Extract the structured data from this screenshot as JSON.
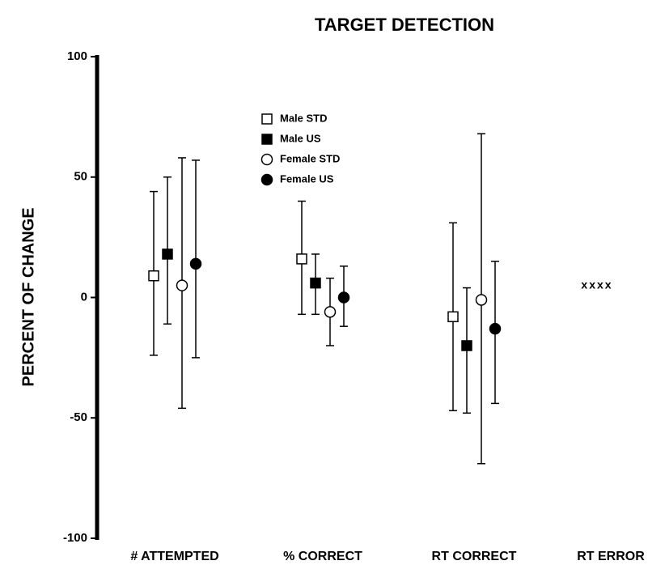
{
  "chart_data": {
    "type": "errorbar",
    "title": "TARGET DETECTION",
    "ylabel": "PERCENT OF CHANGE",
    "categories": [
      "# ATTEMPTED",
      "% CORRECT",
      "RT CORRECT",
      "RT ERROR"
    ],
    "series": [
      {
        "name": "Male STD",
        "color": "#000000",
        "marker": "square",
        "filled": false,
        "values": [
          9,
          16,
          -8,
          null
        ],
        "high": [
          44,
          40,
          31,
          null
        ],
        "low": [
          -24,
          -7,
          -47,
          null
        ]
      },
      {
        "name": "Male US",
        "color": "#000000",
        "marker": "square",
        "filled": true,
        "values": [
          18,
          6,
          -20,
          null
        ],
        "high": [
          50,
          18,
          4,
          null
        ],
        "low": [
          -11,
          -7,
          -48,
          null
        ]
      },
      {
        "name": "Female STD",
        "color": "#000000",
        "marker": "circle",
        "filled": false,
        "values": [
          5,
          -6,
          -1,
          null
        ],
        "high": [
          58,
          8,
          68,
          null
        ],
        "low": [
          -46,
          -20,
          -69,
          null
        ]
      },
      {
        "name": "Female US",
        "color": "#000000",
        "marker": "circle",
        "filled": true,
        "values": [
          14,
          0,
          -13,
          null
        ],
        "high": [
          57,
          13,
          15,
          null
        ],
        "low": [
          -25,
          -12,
          -44,
          null
        ]
      }
    ],
    "annotation": "xxxx",
    "ylim": [
      -100,
      100
    ],
    "yticks": [
      -100,
      -50,
      0,
      50,
      100
    ]
  }
}
